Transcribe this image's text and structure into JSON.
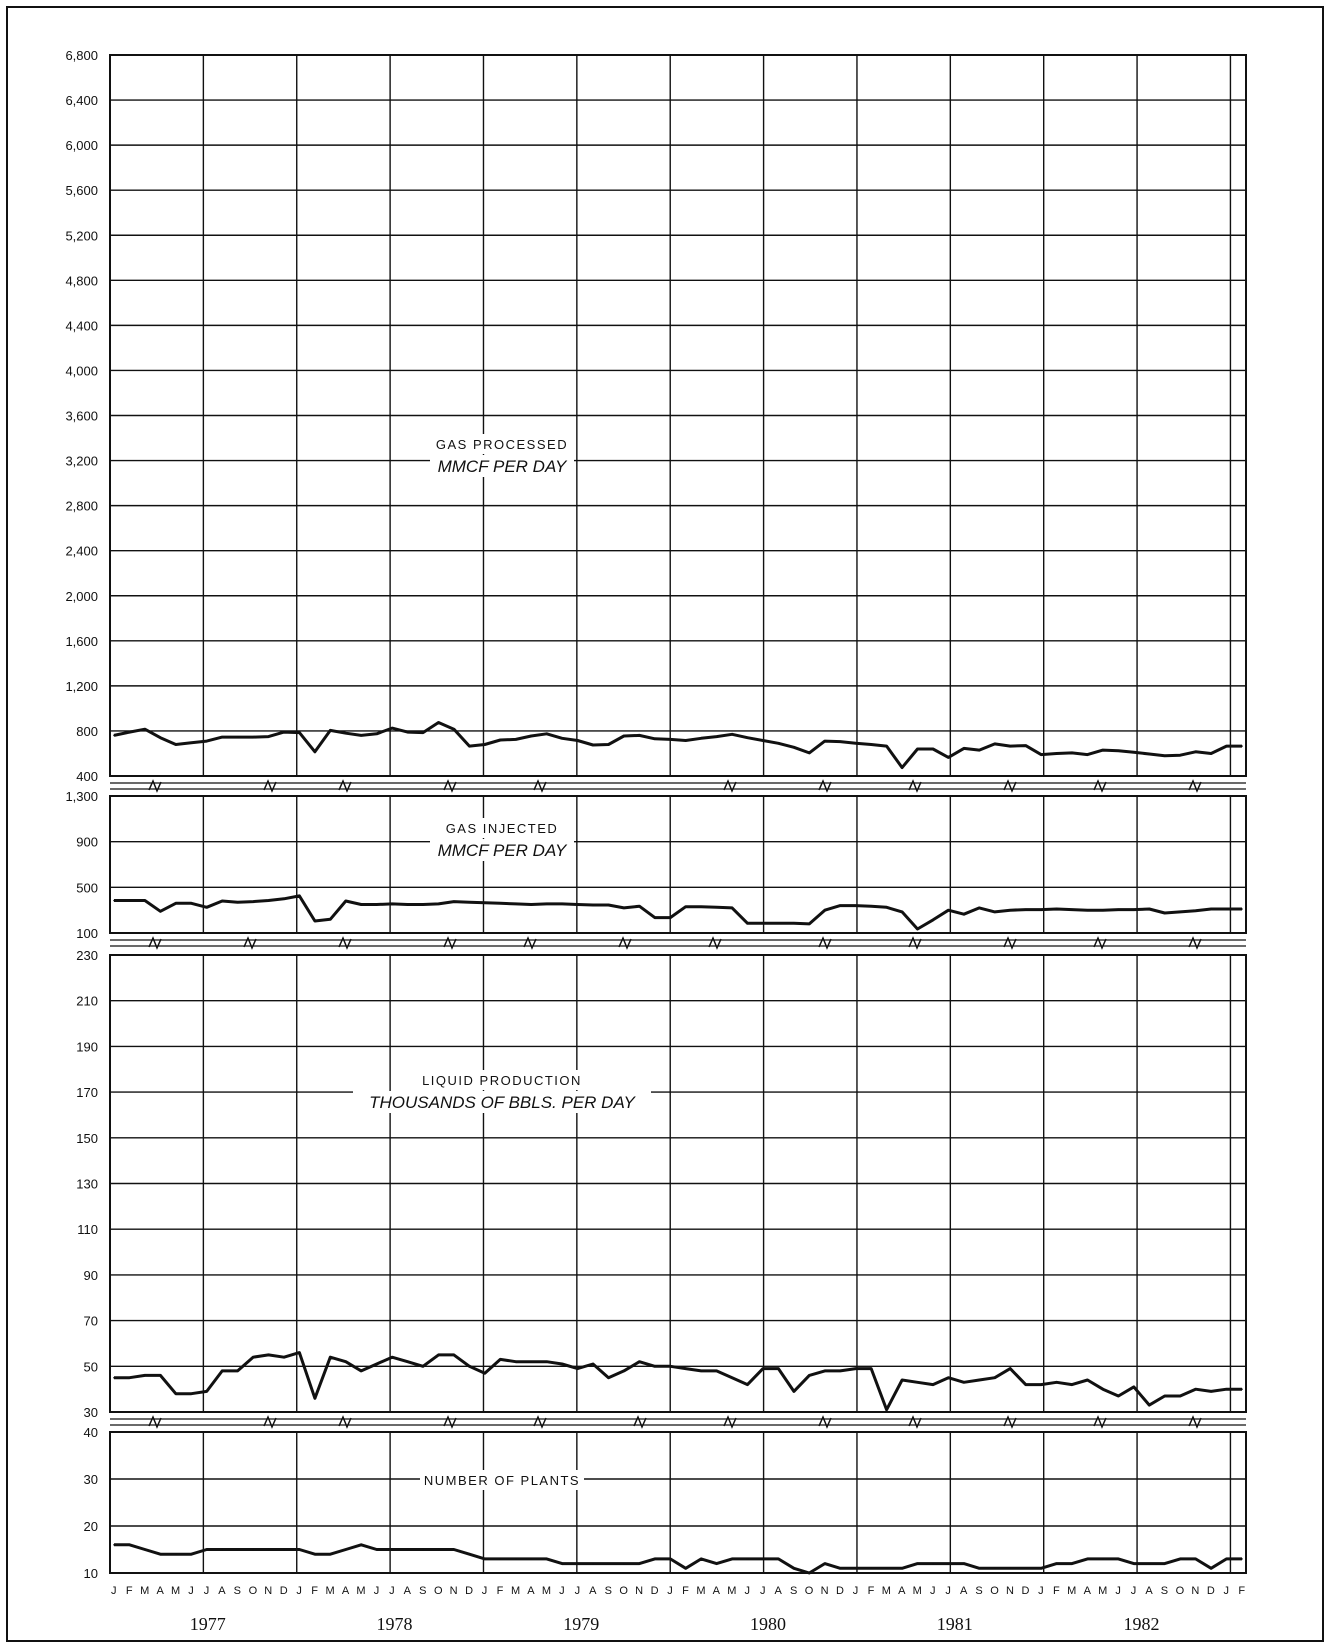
{
  "chart_data": [
    {
      "type": "line",
      "title": "GAS PROCESSED",
      "subtitle": "MMCF PER DAY",
      "ylim": [
        400,
        6800
      ],
      "yticks": [
        "6,800",
        "6,400",
        "6,000",
        "5,600",
        "5,200",
        "4,800",
        "4,400",
        "4,000",
        "3,600",
        "3,200",
        "2,800",
        "2,400",
        "2,000",
        "1,600",
        "1,200",
        "800",
        "400"
      ],
      "series": [
        {
          "values": [
            760,
            790,
            815,
            740,
            680,
            695,
            710,
            745,
            745,
            745,
            750,
            790,
            785,
            615,
            805,
            780,
            760,
            775,
            825,
            790,
            785,
            875,
            815,
            665,
            680,
            720,
            725,
            755,
            775,
            735,
            715,
            675,
            680,
            755,
            760,
            730,
            725,
            715,
            735,
            750,
            770,
            740,
            715,
            690,
            655,
            605,
            710,
            705,
            690,
            680,
            665,
            475,
            640,
            640,
            565,
            645,
            630,
            685,
            665,
            670,
            590,
            600,
            605,
            590,
            630,
            625,
            610,
            595,
            580,
            585,
            615,
            600,
            665,
            665
          ]
        }
      ]
    },
    {
      "type": "line",
      "title": "GAS INJECTED",
      "subtitle": "MMCF PER DAY",
      "ylim": [
        100,
        1300
      ],
      "yticks": [
        "1,300",
        "900",
        "500",
        "100"
      ],
      "series": [
        {
          "values": [
            385,
            385,
            385,
            290,
            360,
            360,
            325,
            380,
            370,
            375,
            385,
            400,
            425,
            205,
            220,
            380,
            350,
            350,
            355,
            350,
            350,
            355,
            375,
            370,
            365,
            360,
            355,
            350,
            355,
            355,
            350,
            345,
            345,
            320,
            335,
            235,
            235,
            330,
            330,
            325,
            320,
            185,
            185,
            185,
            185,
            180,
            300,
            340,
            340,
            335,
            325,
            285,
            135,
            215,
            300,
            265,
            320,
            285,
            300,
            305,
            305,
            310,
            305,
            300,
            300,
            305,
            305,
            310,
            275,
            285,
            295,
            310,
            310,
            310
          ]
        }
      ]
    },
    {
      "type": "line",
      "title": "LIQUID PRODUCTION",
      "subtitle": "THOUSANDS OF BBLS. PER DAY",
      "ylim": [
        30,
        230
      ],
      "yticks": [
        "230",
        "210",
        "190",
        "170",
        "150",
        "130",
        "110",
        "90",
        "70",
        "50",
        "30"
      ],
      "series": [
        {
          "values": [
            45,
            45,
            46,
            46,
            38,
            38,
            39,
            48,
            48,
            54,
            55,
            54,
            56,
            36,
            54,
            52,
            48,
            51,
            54,
            52,
            50,
            55,
            55,
            50,
            47,
            53,
            52,
            52,
            52,
            51,
            49,
            51,
            45,
            48,
            52,
            50,
            50,
            49,
            48,
            48,
            45,
            42,
            49,
            49,
            39,
            46,
            48,
            48,
            49,
            49,
            31,
            44,
            43,
            42,
            45,
            43,
            44,
            45,
            49,
            42,
            42,
            43,
            42,
            44,
            40,
            37,
            41,
            33,
            37,
            37,
            40,
            39,
            40,
            40
          ]
        }
      ]
    },
    {
      "type": "line",
      "title": "NUMBER OF PLANTS",
      "ylim": [
        10,
        40
      ],
      "yticks": [
        "40",
        "30",
        "20",
        "10"
      ],
      "series": [
        {
          "values": [
            16,
            16,
            15,
            14,
            14,
            14,
            15,
            15,
            15,
            15,
            15,
            15,
            15,
            14,
            14,
            15,
            16,
            15,
            15,
            15,
            15,
            15,
            15,
            14,
            13,
            13,
            13,
            13,
            13,
            12,
            12,
            12,
            12,
            12,
            12,
            13,
            13,
            11,
            13,
            12,
            13,
            13,
            13,
            13,
            11,
            10,
            12,
            11,
            11,
            11,
            11,
            11,
            12,
            12,
            12,
            12,
            11,
            11,
            11,
            11,
            11,
            12,
            12,
            13,
            13,
            13,
            12,
            12,
            12,
            13,
            13,
            11,
            13,
            13
          ]
        }
      ]
    }
  ],
  "x_axis": {
    "months": [
      "J",
      "F",
      "M",
      "A",
      "M",
      "J",
      "J",
      "A",
      "S",
      "O",
      "N",
      "D",
      "J",
      "F",
      "M",
      "A",
      "M",
      "J",
      "J",
      "A",
      "S",
      "O",
      "N",
      "D",
      "J",
      "F",
      "M",
      "A",
      "M",
      "J",
      "J",
      "A",
      "S",
      "O",
      "N",
      "D",
      "J",
      "F",
      "M",
      "A",
      "M",
      "J",
      "J",
      "A",
      "S",
      "O",
      "N",
      "D",
      "J",
      "F",
      "M",
      "A",
      "M",
      "J",
      "J",
      "A",
      "S",
      "O",
      "N",
      "D",
      "J",
      "F",
      "M",
      "A",
      "M",
      "J",
      "J",
      "A",
      "S",
      "O",
      "N",
      "D",
      "J",
      "F"
    ],
    "years": [
      "1977",
      "1978",
      "1979",
      "1980",
      "1981",
      "1982"
    ]
  },
  "colors": {
    "ink": "#111111",
    "background": "#ffffff"
  }
}
